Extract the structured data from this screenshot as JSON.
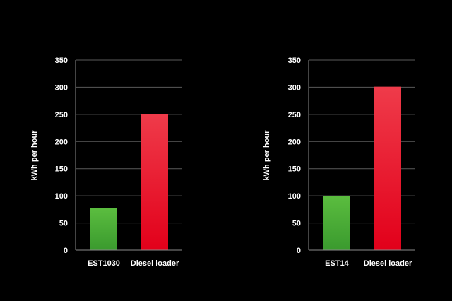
{
  "chart_data": [
    {
      "type": "bar",
      "categories": [
        "EST1030",
        "Diesel loader"
      ],
      "values": [
        77,
        251
      ],
      "bar_colors": [
        "#3fa535",
        "#e30613"
      ],
      "ylabel": "kWh per hour",
      "ylim": [
        0,
        350
      ],
      "yticks": [
        0,
        50,
        100,
        150,
        200,
        250,
        300,
        350
      ],
      "grid": true
    },
    {
      "type": "bar",
      "categories": [
        "EST14",
        "Diesel loader"
      ],
      "values": [
        100,
        301
      ],
      "bar_colors": [
        "#3fa535",
        "#e30613"
      ],
      "ylabel": "kWh per hour",
      "ylim": [
        0,
        350
      ],
      "yticks": [
        0,
        50,
        100,
        150,
        200,
        250,
        300,
        350
      ],
      "grid": true
    }
  ]
}
